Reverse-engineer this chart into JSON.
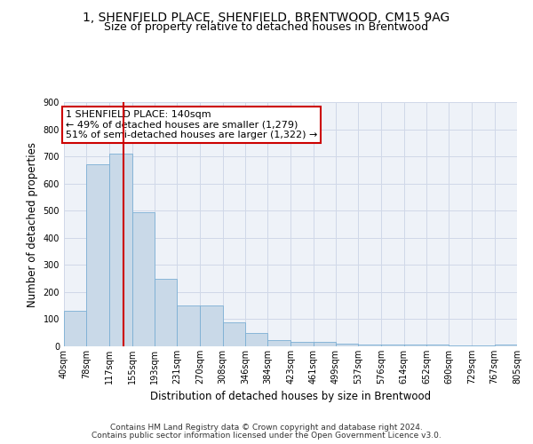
{
  "title1": "1, SHENFIELD PLACE, SHENFIELD, BRENTWOOD, CM15 9AG",
  "title2": "Size of property relative to detached houses in Brentwood",
  "xlabel": "Distribution of detached houses by size in Brentwood",
  "ylabel": "Number of detached properties",
  "bar_edges": [
    40,
    78,
    117,
    155,
    193,
    231,
    270,
    308,
    346,
    384,
    423,
    461,
    499,
    537,
    576,
    614,
    652,
    690,
    729,
    767,
    805
  ],
  "bar_heights": [
    130,
    670,
    710,
    495,
    250,
    150,
    150,
    88,
    50,
    22,
    17,
    17,
    10,
    8,
    8,
    5,
    5,
    3,
    3,
    8
  ],
  "bar_color": "#c9d9e8",
  "bar_edge_color": "#7bafd4",
  "red_line_x": 140,
  "annotation_text": "1 SHENFIELD PLACE: 140sqm\n← 49% of detached houses are smaller (1,279)\n51% of semi-detached houses are larger (1,322) →",
  "annotation_box_color": "#ffffff",
  "annotation_box_edge_color": "#cc0000",
  "ylim": [
    0,
    900
  ],
  "yticks": [
    0,
    100,
    200,
    300,
    400,
    500,
    600,
    700,
    800,
    900
  ],
  "grid_color": "#d0d8e8",
  "background_color": "#eef2f8",
  "footer1": "Contains HM Land Registry data © Crown copyright and database right 2024.",
  "footer2": "Contains public sector information licensed under the Open Government Licence v3.0.",
  "title1_fontsize": 10,
  "title2_fontsize": 9,
  "tick_label_fontsize": 7,
  "axis_label_fontsize": 8.5,
  "annotation_fontsize": 8,
  "footer_fontsize": 6.5
}
